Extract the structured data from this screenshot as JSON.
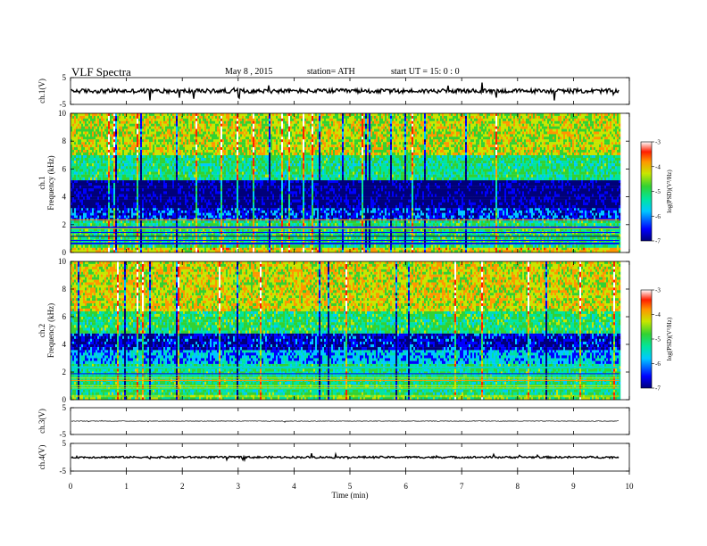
{
  "header": {
    "title": "VLF  Spectra",
    "date": "May 8  , 2015",
    "station": "station= ATH",
    "start": "start  UT  =   15: 0  : 0"
  },
  "chart_data": {
    "type": "heatmap",
    "x": {
      "label": "Time  (min)",
      "range": [
        0,
        10
      ],
      "ticks": [
        "0",
        "1",
        "2",
        "3",
        "4",
        "5",
        "6",
        "7",
        "8",
        "9",
        "10"
      ],
      "data_end_min": 9.82
    },
    "panels": [
      {
        "id": "ch1-waveform",
        "type": "line",
        "ylabel": "ch.1(V)",
        "ylim": [
          -5,
          5
        ],
        "yticks": [
          "5",
          "-5"
        ],
        "baseline": 0,
        "noise_amplitude": 0.8
      },
      {
        "id": "ch1-spectrogram",
        "type": "heatmap",
        "ylabel": "ch.1",
        "ylabel2": "Frequency  (kHz)",
        "ylim": [
          0,
          10
        ],
        "yticks": [
          "0",
          "2",
          "4",
          "6",
          "8",
          "10"
        ],
        "colorbar_label": "log(PSD)(V²/Hz)",
        "colorbar_range": [
          -7,
          -3
        ],
        "colorbar_ticks": [
          "-3",
          "-4",
          "-5",
          "-6",
          "-7"
        ],
        "bands_khz": [
          {
            "from": 0,
            "to": 0.35,
            "log_psd": -4.4
          },
          {
            "from": 0.35,
            "to": 2.3,
            "log_psd": -5.2
          },
          {
            "from": 2.3,
            "to": 3.2,
            "log_psd": -6.3
          },
          {
            "from": 3.2,
            "to": 5.2,
            "log_psd": -6.8
          },
          {
            "from": 5.2,
            "to": 7.0,
            "log_psd": -5.3
          },
          {
            "from": 7.0,
            "to": 10,
            "log_psd": -4.6
          }
        ]
      },
      {
        "id": "ch2-spectrogram",
        "type": "heatmap",
        "ylabel": "ch.2",
        "ylabel2": "Frequency  (kHz)",
        "ylim": [
          0,
          10
        ],
        "yticks": [
          "0",
          "2",
          "4",
          "6",
          "8",
          "10"
        ],
        "colorbar_label": "log(PSD)(V²/Hz)",
        "colorbar_range": [
          -7,
          -3
        ],
        "colorbar_ticks": [
          "-3",
          "-4",
          "-5",
          "-6",
          "-7"
        ],
        "bands_khz": [
          {
            "from": 0,
            "to": 0.35,
            "log_psd": -5.0
          },
          {
            "from": 0.35,
            "to": 2.6,
            "log_psd": -5.3
          },
          {
            "from": 2.6,
            "to": 3.6,
            "log_psd": -5.9
          },
          {
            "from": 3.6,
            "to": 4.8,
            "log_psd": -6.5
          },
          {
            "from": 4.8,
            "to": 6.4,
            "log_psd": -5.2
          },
          {
            "from": 6.4,
            "to": 10,
            "log_psd": -4.5
          }
        ]
      },
      {
        "id": "ch3-waveform",
        "type": "line",
        "ylabel": "ch.3(V)",
        "ylim": [
          -5,
          5
        ],
        "yticks": [
          "5",
          "-5"
        ],
        "baseline": 0,
        "noise_amplitude": 0.1
      },
      {
        "id": "ch4-waveform",
        "type": "line",
        "ylabel": "ch.4(V)",
        "ylim": [
          -5,
          5
        ],
        "yticks": [
          "5",
          "-5"
        ],
        "baseline": 0,
        "noise_amplitude": 0.35
      }
    ]
  },
  "colors": {
    "colormap": [
      "#00007a",
      "#0000ff",
      "#00c8ff",
      "#00e4a0",
      "#32d232",
      "#c8e600",
      "#ff9600",
      "#ff1e00",
      "#ffffff"
    ],
    "line": "#000000"
  }
}
